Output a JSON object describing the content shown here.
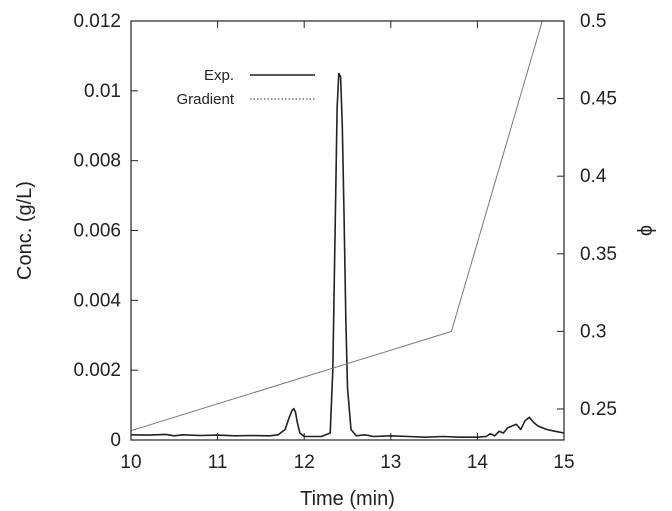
{
  "chart_data": {
    "type": "line",
    "xlabel": "Time (min)",
    "ylabel": "Conc. (g/L)",
    "y2label": "ϕ",
    "xlim": [
      10,
      15
    ],
    "ylim": [
      0,
      0.012
    ],
    "y2lim": [
      0.23,
      0.5
    ],
    "xticks": [
      10,
      11,
      12,
      13,
      14,
      15
    ],
    "xtick_labels": [
      "10",
      "11",
      "12",
      "13",
      "14",
      "15"
    ],
    "yticks": [
      0,
      0.002,
      0.004,
      0.006,
      0.008,
      0.01,
      0.012
    ],
    "ytick_labels": [
      "0",
      "0.002",
      "0.004",
      "0.006",
      "0.008",
      "0.01",
      "0.012"
    ],
    "y2ticks": [
      0.25,
      0.3,
      0.35,
      0.4,
      0.45,
      0.5
    ],
    "y2tick_labels": [
      "0.25",
      "0.3",
      "0.35",
      "0.4",
      "0.45",
      "0.5"
    ],
    "grid": false,
    "legend_position": "top-left",
    "series": [
      {
        "name": "Exp.",
        "axis": "left",
        "color": "#222222",
        "line_style": "solid",
        "x": [
          10,
          10.2,
          10.4,
          10.5,
          10.6,
          10.8,
          11.0,
          11.2,
          11.4,
          11.6,
          11.7,
          11.78,
          11.82,
          11.86,
          11.88,
          11.9,
          11.92,
          11.95,
          12.0,
          12.1,
          12.2,
          12.3,
          12.33,
          12.36,
          12.38,
          12.4,
          12.42,
          12.44,
          12.46,
          12.48,
          12.5,
          12.54,
          12.6,
          12.7,
          12.8,
          13.0,
          13.2,
          13.4,
          13.6,
          13.8,
          14.0,
          14.1,
          14.15,
          14.2,
          14.25,
          14.3,
          14.35,
          14.4,
          14.45,
          14.5,
          14.55,
          14.6,
          14.65,
          14.7,
          14.8,
          14.9,
          15.0
        ],
        "y": [
          0.00015,
          0.00014,
          0.00016,
          0.00012,
          0.00015,
          0.00013,
          0.00014,
          0.00012,
          0.00013,
          0.00012,
          0.00015,
          0.0003,
          0.0006,
          0.00085,
          0.0009,
          0.0008,
          0.0005,
          0.0002,
          0.0001,
          0.0001,
          0.0001,
          0.0002,
          0.002,
          0.0065,
          0.0095,
          0.0105,
          0.0104,
          0.009,
          0.0065,
          0.0035,
          0.0015,
          0.0003,
          0.00012,
          0.00015,
          0.0001,
          0.00012,
          0.0001,
          8e-05,
          0.0001,
          8e-05,
          8e-05,
          0.0001,
          0.00018,
          0.00012,
          0.00025,
          0.0002,
          0.00035,
          0.0004,
          0.00045,
          0.0003,
          0.00055,
          0.00065,
          0.0005,
          0.0004,
          0.0003,
          0.00025,
          0.0002
        ]
      },
      {
        "name": "Gradient",
        "axis": "right",
        "color": "#777777",
        "line_style": "dotted",
        "x": [
          10,
          13.7,
          14.75
        ],
        "y": [
          0.236,
          0.3,
          0.5
        ]
      }
    ]
  }
}
